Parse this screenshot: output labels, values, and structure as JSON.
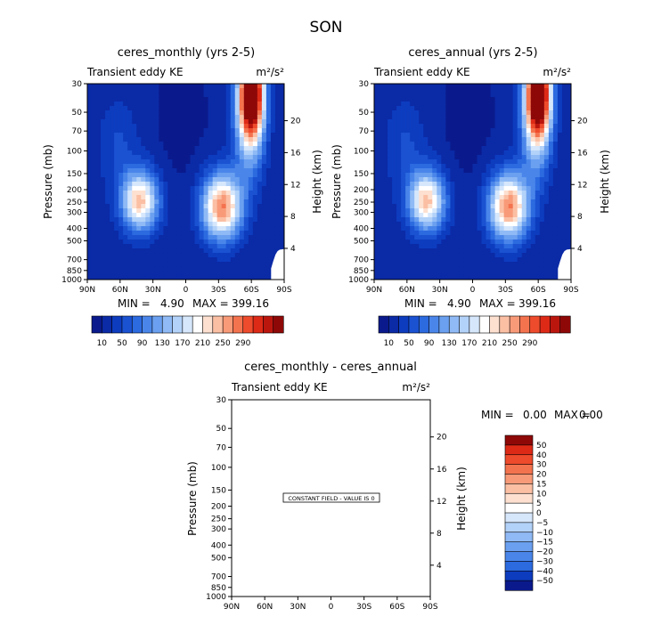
{
  "figure": {
    "title": "SON",
    "diff_note": "CONSTANT FIELD - VALUE IS 0"
  },
  "colors": {
    "top_palette": [
      "#0a1a8c",
      "#0b2aa6",
      "#0d3cbf",
      "#1a52d2",
      "#2c6ae0",
      "#4a86ea",
      "#6ba0f0",
      "#8fbaf5",
      "#b3d2f9",
      "#d6e7fc",
      "#ffffff",
      "#fde0d0",
      "#fbbfa4",
      "#f89a78",
      "#f4734f",
      "#ee4b2c",
      "#dd2a17",
      "#bb160e",
      "#8e0808"
    ],
    "diff_palette": [
      "#0a1a8c",
      "#0d3cbf",
      "#2c6ae0",
      "#4a86ea",
      "#6ba0f0",
      "#8fbaf5",
      "#b3d2f9",
      "#d6e7fc",
      "#ffffff",
      "#fde0d0",
      "#fbbfa4",
      "#f89a78",
      "#f4734f",
      "#ee4b2c",
      "#dd2a17",
      "#8e0808"
    ]
  },
  "chart_data": [
    {
      "type": "heatmap",
      "title": "ceres_monthly (yrs 2-5)",
      "subtitle_left": "Transient eddy KE",
      "units": "m²/s²",
      "ylabel": "Pressure (mb)",
      "ylabel_right": "Height (km)",
      "x_ticks": [
        "90N",
        "60N",
        "30N",
        "0",
        "30S",
        "60S",
        "90S"
      ],
      "y_ticks": [
        "30",
        "50",
        "70",
        "100",
        "150",
        "200",
        "250",
        "300",
        "400",
        "500",
        "700",
        "850",
        "1000"
      ],
      "y_ticks_right": [
        "20",
        "16",
        "12",
        "8",
        "4"
      ],
      "min_label": "MIN =",
      "min_value": "4.90",
      "max_label": "MAX =",
      "max_value": "399.16",
      "colorbar_labels": [
        "10",
        "50",
        "90",
        "130",
        "170",
        "210",
        "250",
        "290"
      ],
      "yscale": "log",
      "ylim": [
        1000,
        30
      ]
    },
    {
      "type": "heatmap",
      "title": "ceres_annual (yrs 2-5)",
      "subtitle_left": "Transient eddy KE",
      "units": "m²/s²",
      "ylabel": "Pressure (mb)",
      "ylabel_right": "Height (km)",
      "x_ticks": [
        "90N",
        "60N",
        "30N",
        "0",
        "30S",
        "60S",
        "90S"
      ],
      "y_ticks": [
        "30",
        "50",
        "70",
        "100",
        "150",
        "200",
        "250",
        "300",
        "400",
        "500",
        "700",
        "850",
        "1000"
      ],
      "y_ticks_right": [
        "20",
        "16",
        "12",
        "8",
        "4"
      ],
      "min_label": "MIN =",
      "min_value": "4.90",
      "max_label": "MAX =",
      "max_value": "399.16",
      "colorbar_labels": [
        "10",
        "50",
        "90",
        "130",
        "170",
        "210",
        "250",
        "290"
      ],
      "yscale": "log",
      "ylim": [
        1000,
        30
      ]
    },
    {
      "type": "heatmap",
      "title": "ceres_monthly - ceres_annual",
      "subtitle_left": "Transient eddy KE",
      "units": "m²/s²",
      "ylabel": "Pressure (mb)",
      "ylabel_right": "Height (km)",
      "x_ticks": [
        "90N",
        "60N",
        "30N",
        "0",
        "30S",
        "60S",
        "90S"
      ],
      "y_ticks": [
        "30",
        "50",
        "70",
        "100",
        "150",
        "200",
        "250",
        "300",
        "400",
        "500",
        "700",
        "850",
        "1000"
      ],
      "y_ticks_right": [
        "20",
        "16",
        "12",
        "8",
        "4"
      ],
      "min_label": "MIN =",
      "min_value": "0.00",
      "max_label": "MAX =",
      "max_value": "0.00",
      "colorbar_labels": [
        "50",
        "40",
        "30",
        "20",
        "15",
        "10",
        "5",
        "0",
        "−5",
        "−10",
        "−15",
        "−20",
        "−30",
        "−40",
        "−50"
      ],
      "value": 0
    }
  ]
}
